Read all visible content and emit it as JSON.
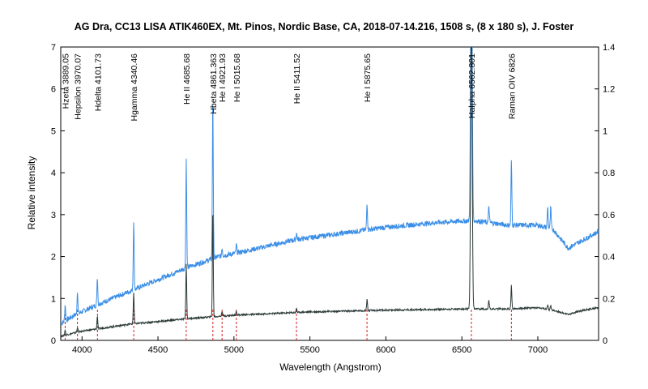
{
  "chart_data": {
    "type": "line",
    "title": "AG Dra, CC13 LISA ATIK460EX, Mt. Pinos, Nordic Base, CA,  2018-07-14.216, 1508 s, (8 x 180 s),  J. Foster",
    "xlabel": "Wavelength (Angstrom)",
    "ylabel": "Relative intensity",
    "xlim": [
      3860,
      7400
    ],
    "ylim": [
      0,
      7
    ],
    "y2lim": [
      0,
      1.4
    ],
    "x_ticks": [
      4000,
      4500,
      5000,
      5500,
      6000,
      6500,
      7000
    ],
    "y_ticks": [
      0,
      1,
      2,
      3,
      4,
      5,
      6,
      7
    ],
    "y2_ticks": [
      "0",
      "0.2",
      "0.4",
      "0.6",
      "0.8",
      "1",
      "1.2",
      "1.4"
    ],
    "grid": false,
    "legend": "none",
    "line_markers": [
      {
        "label": "Hzeta 3889.05",
        "x": 3889.05
      },
      {
        "label": "Hepsilon 3970.07",
        "x": 3970.07
      },
      {
        "label": "Hdelta 4101.73",
        "x": 4101.73
      },
      {
        "label": "Hgamma 4340.46",
        "x": 4340.46
      },
      {
        "label": "He II 4685.68",
        "x": 4685.68
      },
      {
        "label": "Hbeta 4861.363",
        "x": 4861.363
      },
      {
        "label": "He I 4921.93",
        "x": 4921.93
      },
      {
        "label": "He I 5015.68",
        "x": 5015.68
      },
      {
        "label": "He II 5411.52",
        "x": 5411.52
      },
      {
        "label": "He I 5875.65",
        "x": 5875.65
      },
      {
        "label": "Halpha 6562.801",
        "x": 6562.801
      },
      {
        "label": "Raman OIV 6826",
        "x": 6826
      }
    ],
    "series": [
      {
        "color": "#3a8ee6",
        "continuum": [
          [
            3860,
            0.4
          ],
          [
            3950,
            0.6
          ],
          [
            4100,
            0.85
          ],
          [
            4300,
            1.15
          ],
          [
            4500,
            1.45
          ],
          [
            4700,
            1.75
          ],
          [
            4900,
            2.0
          ],
          [
            5100,
            2.15
          ],
          [
            5400,
            2.4
          ],
          [
            5700,
            2.55
          ],
          [
            6000,
            2.7
          ],
          [
            6300,
            2.8
          ],
          [
            6500,
            2.85
          ],
          [
            6600,
            2.85
          ],
          [
            6800,
            2.75
          ],
          [
            7000,
            2.75
          ],
          [
            7100,
            2.65
          ],
          [
            7200,
            2.2
          ],
          [
            7300,
            2.4
          ],
          [
            7400,
            2.6
          ]
        ],
        "peaks": [
          [
            3889,
            0.4
          ],
          [
            3970,
            0.55
          ],
          [
            4101,
            0.65
          ],
          [
            4340,
            1.65
          ],
          [
            4686,
            2.6
          ],
          [
            4861,
            3.9
          ],
          [
            4922,
            0.2
          ],
          [
            5016,
            0.2
          ],
          [
            5412,
            0.15
          ],
          [
            5876,
            0.65
          ],
          [
            6563,
            7.5
          ],
          [
            6678,
            0.4
          ],
          [
            6826,
            1.55
          ],
          [
            7065,
            0.5
          ],
          [
            7085,
            0.5
          ]
        ]
      },
      {
        "color": "#2b3a38",
        "continuum": [
          [
            3860,
            0.1
          ],
          [
            4000,
            0.22
          ],
          [
            4300,
            0.38
          ],
          [
            4700,
            0.52
          ],
          [
            5000,
            0.6
          ],
          [
            5500,
            0.68
          ],
          [
            6000,
            0.72
          ],
          [
            6500,
            0.75
          ],
          [
            6600,
            0.75
          ],
          [
            6800,
            0.75
          ],
          [
            7000,
            0.78
          ],
          [
            7100,
            0.72
          ],
          [
            7200,
            0.62
          ],
          [
            7300,
            0.72
          ],
          [
            7400,
            0.78
          ]
        ],
        "peaks": [
          [
            3889,
            0.12
          ],
          [
            3970,
            0.12
          ],
          [
            4101,
            0.3
          ],
          [
            4340,
            0.75
          ],
          [
            4686,
            1.3
          ],
          [
            4861,
            2.55
          ],
          [
            4922,
            0.12
          ],
          [
            5016,
            0.1
          ],
          [
            5412,
            0.1
          ],
          [
            5876,
            0.28
          ],
          [
            6563,
            7.2
          ],
          [
            6678,
            0.2
          ],
          [
            6826,
            0.55
          ],
          [
            7065,
            0.1
          ],
          [
            7085,
            0.1
          ]
        ]
      }
    ]
  }
}
